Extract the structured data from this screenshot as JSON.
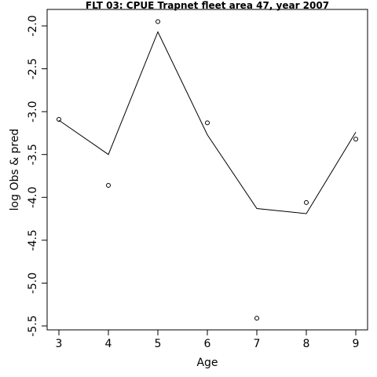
{
  "chart_data": {
    "type": "line",
    "title": "FLT 03: CPUE Trapnet fleet area 47, year 2007",
    "xlabel": "Age",
    "ylabel": "log Obs & pred",
    "xlim": [
      3,
      9
    ],
    "ylim": [
      -5.5,
      -2.0
    ],
    "x": [
      3,
      4,
      5,
      6,
      7,
      8,
      9
    ],
    "x_ticks": [
      "3",
      "4",
      "5",
      "6",
      "7",
      "8",
      "9"
    ],
    "y_ticks": [
      {
        "value": -2.0,
        "label": "-2.0"
      },
      {
        "value": -2.5,
        "label": "-2.5"
      },
      {
        "value": -3.0,
        "label": "-3.0"
      },
      {
        "value": -3.5,
        "label": "-3.5"
      },
      {
        "value": -4.0,
        "label": "-4.0"
      },
      {
        "value": -4.5,
        "label": "-4.5"
      },
      {
        "value": -5.0,
        "label": "-5.0"
      },
      {
        "value": -5.5,
        "label": "-5.5"
      }
    ],
    "series": [
      {
        "kind": "line",
        "values": [
          -3.1,
          -3.5,
          -2.07,
          -3.27,
          -4.13,
          -4.19,
          -3.24
        ]
      },
      {
        "kind": "points",
        "values": [
          -3.09,
          -3.86,
          -1.95,
          -3.13,
          -5.41,
          -4.06,
          -3.32
        ]
      }
    ],
    "grid": false,
    "legend": "none"
  }
}
